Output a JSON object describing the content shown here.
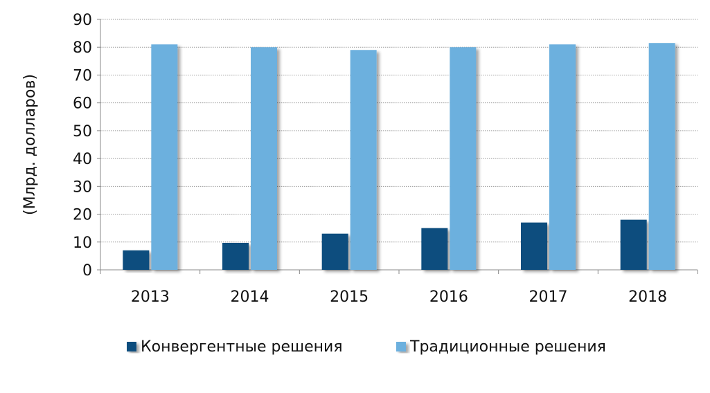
{
  "chart_data": {
    "type": "bar",
    "title": "",
    "xlabel": "",
    "ylabel": "(Млрд. долларов)",
    "categories": [
      "2013",
      "2014",
      "2015",
      "2016",
      "2017",
      "2018"
    ],
    "ylim": [
      0,
      90
    ],
    "yticks": [
      0,
      10,
      20,
      30,
      40,
      50,
      60,
      70,
      80,
      90
    ],
    "grid": true,
    "legend_position": "bottom",
    "series": [
      {
        "name": "Конвергентные решения",
        "color": "#0b4d7e",
        "values": [
          7,
          9.7,
          13,
          15,
          17,
          18
        ]
      },
      {
        "name": "Традиционные решения",
        "color": "#6cb0de",
        "values": [
          81,
          80,
          79,
          80,
          81,
          81.5
        ]
      }
    ]
  }
}
